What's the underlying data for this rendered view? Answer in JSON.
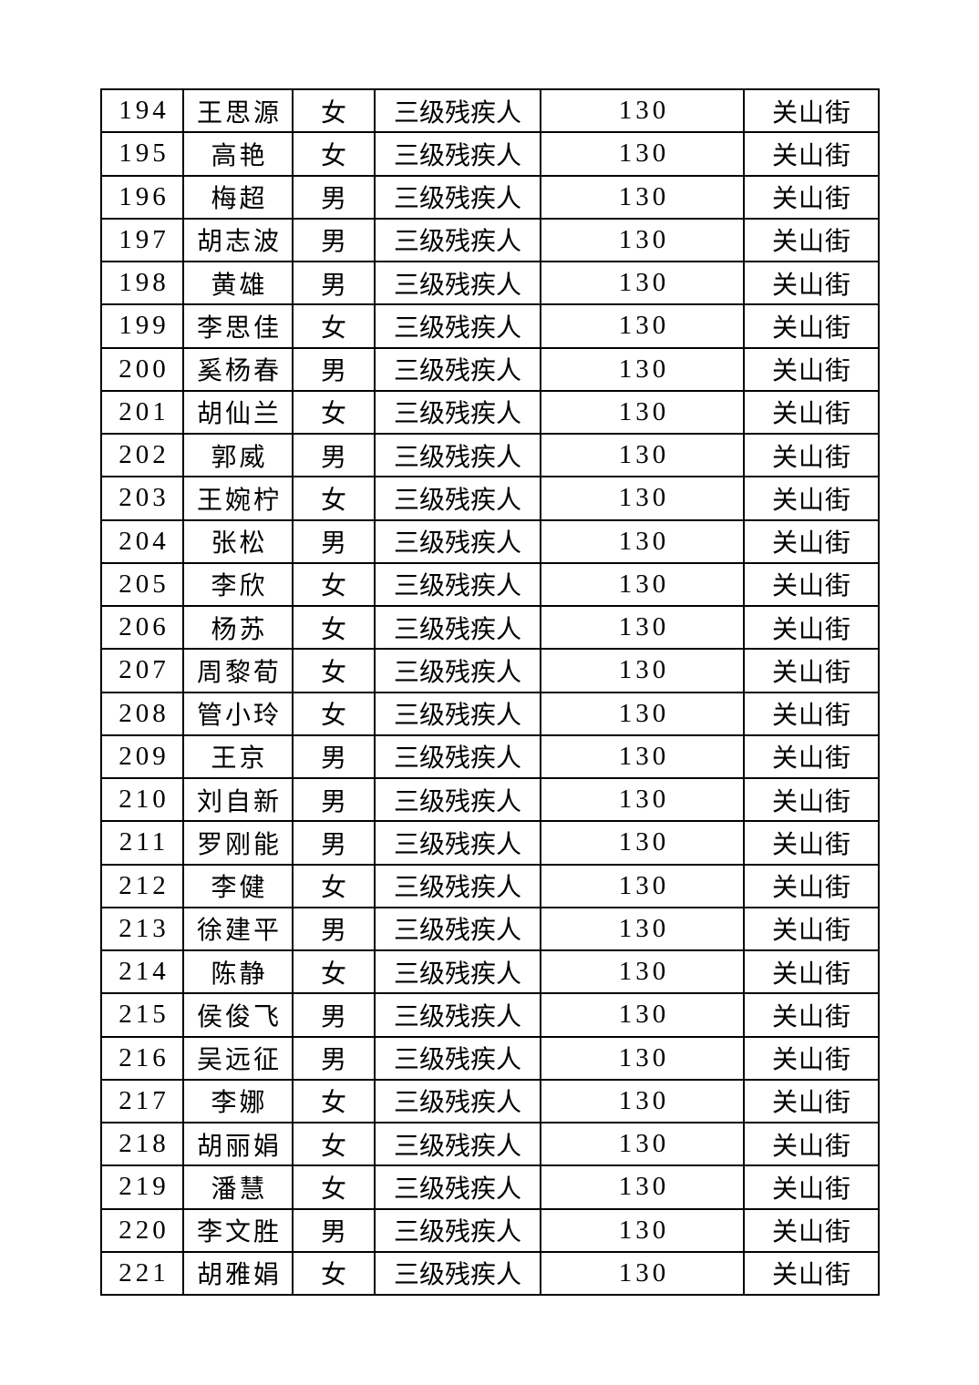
{
  "page": {
    "background_color": "#ffffff",
    "text_color": "#000000",
    "table_border_color": "#000000"
  },
  "table": {
    "visible_header": null,
    "row_range": "194-221",
    "rows": [
      {
        "id": "194",
        "name": "王思源",
        "gender": "女",
        "category": "三级残疾人",
        "amount": "130",
        "street": "关山街"
      },
      {
        "id": "195",
        "name": "高艳",
        "gender": "女",
        "category": "三级残疾人",
        "amount": "130",
        "street": "关山街"
      },
      {
        "id": "196",
        "name": "梅超",
        "gender": "男",
        "category": "三级残疾人",
        "amount": "130",
        "street": "关山街"
      },
      {
        "id": "197",
        "name": "胡志波",
        "gender": "男",
        "category": "三级残疾人",
        "amount": "130",
        "street": "关山街"
      },
      {
        "id": "198",
        "name": "黄雄",
        "gender": "男",
        "category": "三级残疾人",
        "amount": "130",
        "street": "关山街"
      },
      {
        "id": "199",
        "name": "李思佳",
        "gender": "女",
        "category": "三级残疾人",
        "amount": "130",
        "street": "关山街"
      },
      {
        "id": "200",
        "name": "奚杨春",
        "gender": "男",
        "category": "三级残疾人",
        "amount": "130",
        "street": "关山街"
      },
      {
        "id": "201",
        "name": "胡仙兰",
        "gender": "女",
        "category": "三级残疾人",
        "amount": "130",
        "street": "关山街"
      },
      {
        "id": "202",
        "name": "郭威",
        "gender": "男",
        "category": "三级残疾人",
        "amount": "130",
        "street": "关山街"
      },
      {
        "id": "203",
        "name": "王婉柠",
        "gender": "女",
        "category": "三级残疾人",
        "amount": "130",
        "street": "关山街"
      },
      {
        "id": "204",
        "name": "张松",
        "gender": "男",
        "category": "三级残疾人",
        "amount": "130",
        "street": "关山街"
      },
      {
        "id": "205",
        "name": "李欣",
        "gender": "女",
        "category": "三级残疾人",
        "amount": "130",
        "street": "关山街"
      },
      {
        "id": "206",
        "name": "杨苏",
        "gender": "女",
        "category": "三级残疾人",
        "amount": "130",
        "street": "关山街"
      },
      {
        "id": "207",
        "name": "周黎荀",
        "gender": "女",
        "category": "三级残疾人",
        "amount": "130",
        "street": "关山街"
      },
      {
        "id": "208",
        "name": "管小玲",
        "gender": "女",
        "category": "三级残疾人",
        "amount": "130",
        "street": "关山街"
      },
      {
        "id": "209",
        "name": "王京",
        "gender": "男",
        "category": "三级残疾人",
        "amount": "130",
        "street": "关山街"
      },
      {
        "id": "210",
        "name": "刘自新",
        "gender": "男",
        "category": "三级残疾人",
        "amount": "130",
        "street": "关山街"
      },
      {
        "id": "211",
        "name": "罗刚能",
        "gender": "男",
        "category": "三级残疾人",
        "amount": "130",
        "street": "关山街"
      },
      {
        "id": "212",
        "name": "李健",
        "gender": "女",
        "category": "三级残疾人",
        "amount": "130",
        "street": "关山街"
      },
      {
        "id": "213",
        "name": "徐建平",
        "gender": "男",
        "category": "三级残疾人",
        "amount": "130",
        "street": "关山街"
      },
      {
        "id": "214",
        "name": "陈静",
        "gender": "女",
        "category": "三级残疾人",
        "amount": "130",
        "street": "关山街"
      },
      {
        "id": "215",
        "name": "侯俊飞",
        "gender": "男",
        "category": "三级残疾人",
        "amount": "130",
        "street": "关山街"
      },
      {
        "id": "216",
        "name": "吴远征",
        "gender": "男",
        "category": "三级残疾人",
        "amount": "130",
        "street": "关山街"
      },
      {
        "id": "217",
        "name": "李娜",
        "gender": "女",
        "category": "三级残疾人",
        "amount": "130",
        "street": "关山街"
      },
      {
        "id": "218",
        "name": "胡丽娟",
        "gender": "女",
        "category": "三级残疾人",
        "amount": "130",
        "street": "关山街"
      },
      {
        "id": "219",
        "name": "潘慧",
        "gender": "女",
        "category": "三级残疾人",
        "amount": "130",
        "street": "关山街"
      },
      {
        "id": "220",
        "name": "李文胜",
        "gender": "男",
        "category": "三级残疾人",
        "amount": "130",
        "street": "关山街"
      },
      {
        "id": "221",
        "name": "胡雅娟",
        "gender": "女",
        "category": "三级残疾人",
        "amount": "130",
        "street": "关山街"
      }
    ]
  }
}
